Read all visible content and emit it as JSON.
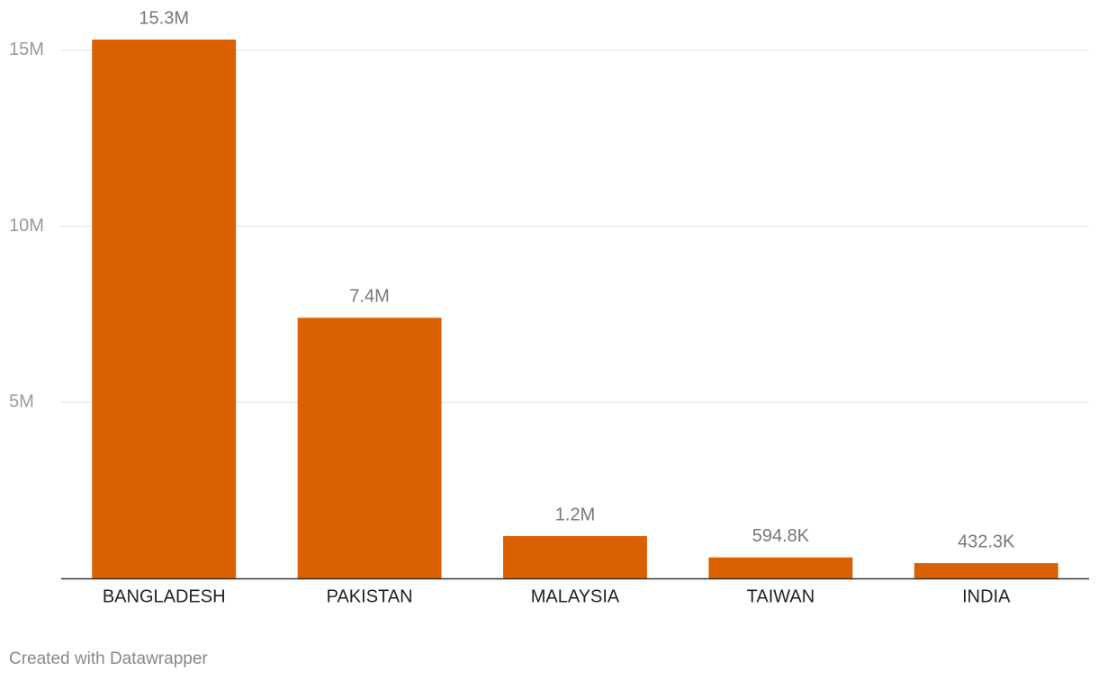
{
  "chart_data": {
    "type": "bar",
    "categories": [
      "BANGLADESH",
      "PAKISTAN",
      "MALAYSIA",
      "TAIWAN",
      "INDIA"
    ],
    "values": [
      15300000,
      7400000,
      1200000,
      594800,
      432300
    ],
    "value_labels": [
      "15.3M",
      "7.4M",
      "1.2M",
      "594.8K",
      "432.3K"
    ],
    "color": "#db6100",
    "ylim": [
      0,
      15300000
    ],
    "yticks": [
      {
        "value": 5000000,
        "label": "5M"
      },
      {
        "value": 10000000,
        "label": "10M"
      },
      {
        "value": 15000000,
        "label": "15M"
      }
    ],
    "grid": true,
    "footer": "Created with Datawrapper"
  }
}
